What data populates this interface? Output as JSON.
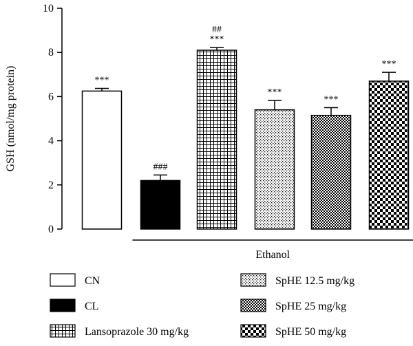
{
  "chart_data": {
    "type": "bar",
    "ylabel": "GSH (nmol/mg protein)",
    "ylim": [
      0,
      10
    ],
    "yticks": [
      0,
      2,
      4,
      6,
      8,
      10
    ],
    "categories": [
      "CN",
      "CL",
      "Lansoprazole 30 mg/kg",
      "SpHE 12.5 mg/kg",
      "SpHE 25 mg/kg",
      "SpHE 50 mg/kg"
    ],
    "values": [
      6.25,
      2.2,
      8.1,
      5.4,
      5.15,
      6.7
    ],
    "errors": [
      0.12,
      0.25,
      0.12,
      0.42,
      0.35,
      0.4
    ],
    "fills": [
      "white",
      "black",
      "grid",
      "dots",
      "checker-fine",
      "checker-coarse"
    ],
    "annotations": [
      [
        "***"
      ],
      [
        "###"
      ],
      [
        "##",
        "***"
      ],
      [
        "***"
      ],
      [
        "***"
      ],
      [
        "***"
      ]
    ],
    "group_label": "Ethanol",
    "group_start_index": 1,
    "legend": [
      {
        "label": "CN",
        "fill": "white"
      },
      {
        "label": "CL",
        "fill": "black"
      },
      {
        "label": "Lansoprazole 30 mg/kg",
        "fill": "grid"
      },
      {
        "label": "SpHE 12.5 mg/kg",
        "fill": "dots"
      },
      {
        "label": "SpHE 25 mg/kg",
        "fill": "checker-fine"
      },
      {
        "label": "SpHE 50 mg/kg",
        "fill": "checker-coarse"
      }
    ],
    "grid": false,
    "legend_position": "bottom"
  }
}
